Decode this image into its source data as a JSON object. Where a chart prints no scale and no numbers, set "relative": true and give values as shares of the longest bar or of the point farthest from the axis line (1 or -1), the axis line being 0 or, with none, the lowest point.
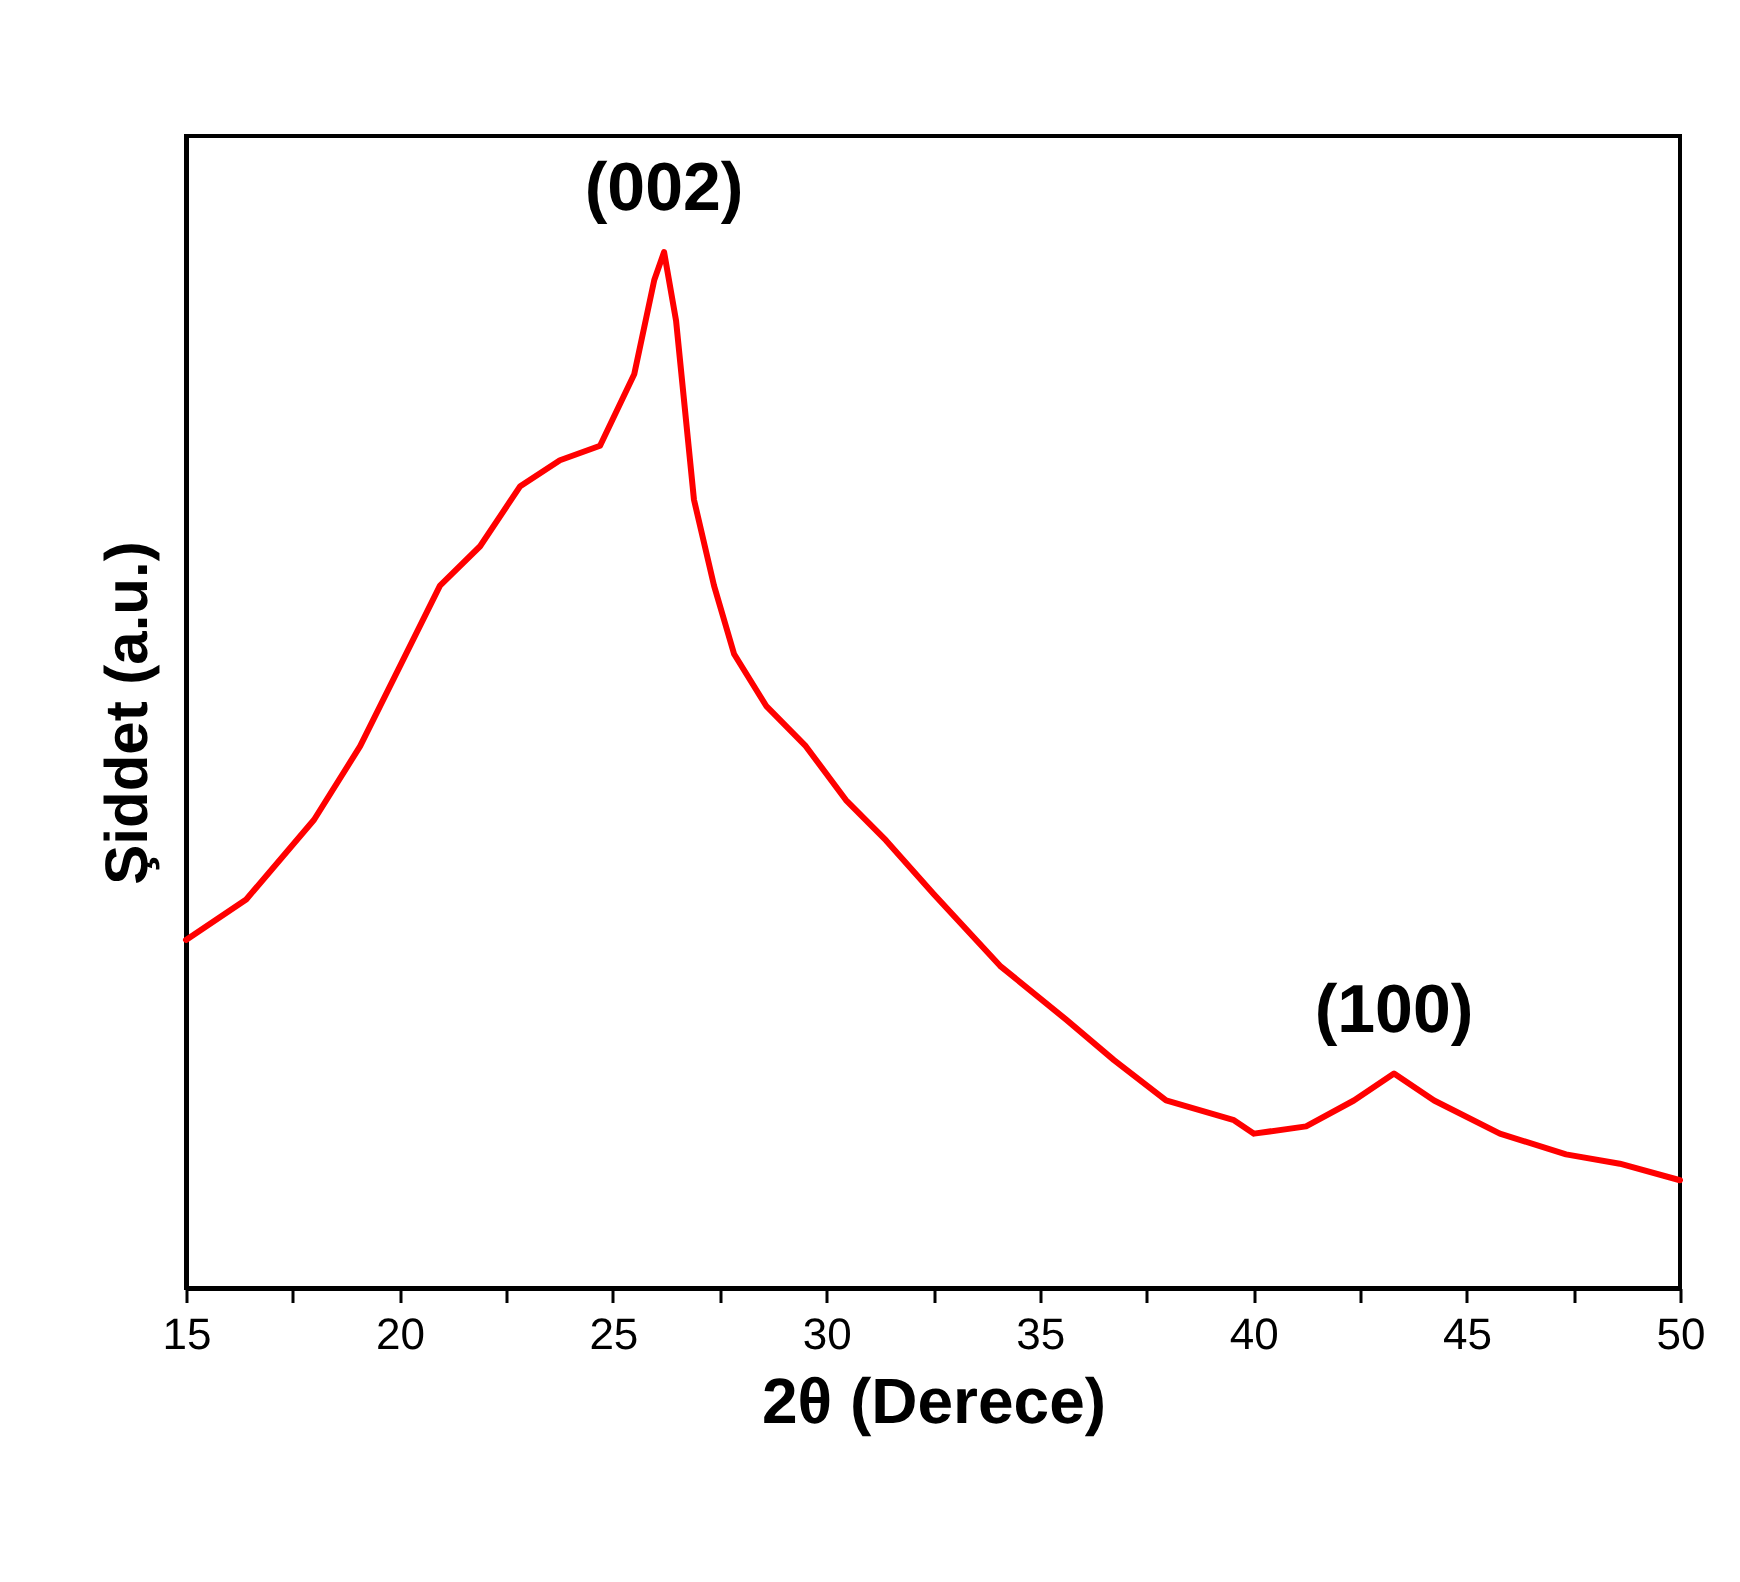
{
  "chart_data": {
    "type": "line",
    "xlabel": "2θ (Derece)",
    "ylabel": "Şiddet (a.u.)",
    "relative": true,
    "xlim": [
      15,
      50
    ],
    "xticks": [
      15,
      {
        "value": 17.5,
        "label": null
      },
      20,
      {
        "value": 22.5,
        "label": null
      },
      25,
      {
        "value": 27.5,
        "label": null
      },
      30,
      {
        "value": 32.5,
        "label": null
      },
      35,
      {
        "value": 37.5,
        "label": null
      },
      40,
      {
        "value": 42.5,
        "label": null
      },
      45,
      {
        "value": 47.5,
        "label": null
      },
      50
    ],
    "grid": false,
    "line_style": "solid",
    "marker": "none",
    "annotations": [
      {
        "text": "(002)",
        "x": 26.2,
        "y": 1.0
      },
      {
        "text": "(100)",
        "x": 43.3,
        "y": 0.207
      }
    ],
    "x": [
      15.0,
      16.41,
      18.0,
      19.08,
      20.01,
      20.95,
      21.89,
      22.83,
      23.76,
      24.7,
      25.5,
      25.97,
      26.2,
      26.48,
      26.9,
      27.37,
      27.84,
      28.59,
      29.52,
      30.46,
      31.4,
      32.52,
      34.07,
      35.62,
      36.74,
      37.96,
      39.55,
      40.02,
      41.24,
      42.36,
      43.3,
      44.24,
      45.78,
      47.33,
      48.59,
      50.0
    ],
    "series": [
      {
        "color": "#ff0000",
        "values": [
          0.336,
          0.375,
          0.452,
          0.523,
          0.6,
          0.678,
          0.716,
          0.774,
          0.799,
          0.813,
          0.882,
          0.973,
          1.0,
          0.934,
          0.761,
          0.678,
          0.612,
          0.562,
          0.523,
          0.471,
          0.432,
          0.38,
          0.311,
          0.259,
          0.22,
          0.181,
          0.162,
          0.149,
          0.156,
          0.181,
          0.207,
          0.181,
          0.149,
          0.129,
          0.12,
          0.104
        ]
      }
    ]
  }
}
